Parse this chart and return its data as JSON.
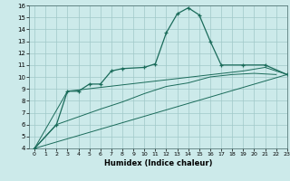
{
  "xlabel": "Humidex (Indice chaleur)",
  "x_values": [
    0,
    1,
    2,
    3,
    4,
    5,
    6,
    7,
    8,
    9,
    10,
    11,
    12,
    13,
    14,
    15,
    16,
    17,
    18,
    19,
    20,
    21,
    22,
    23
  ],
  "line1_x": [
    0,
    2,
    3,
    4,
    5,
    6,
    7,
    8,
    10,
    11,
    12,
    13,
    14,
    15,
    16,
    17,
    19,
    21,
    23
  ],
  "line1_y": [
    4.0,
    6.0,
    8.8,
    8.8,
    9.4,
    9.4,
    10.5,
    10.7,
    10.8,
    11.1,
    13.7,
    15.3,
    15.8,
    15.2,
    13.0,
    11.0,
    11.0,
    11.0,
    10.2
  ],
  "line2_x": [
    0,
    3,
    19,
    21,
    23
  ],
  "line2_y": [
    4.0,
    8.8,
    10.5,
    10.8,
    10.2
  ],
  "line3_x": [
    0,
    2,
    6,
    8,
    10,
    12,
    14,
    16,
    18,
    20,
    22
  ],
  "line3_y": [
    4.0,
    6.0,
    7.3,
    7.9,
    8.6,
    9.2,
    9.5,
    10.0,
    10.2,
    10.3,
    10.2
  ],
  "line4_x": [
    0,
    23
  ],
  "line4_y": [
    4.0,
    10.2
  ],
  "bg_color": "#cceaea",
  "grid_color": "#a0c8c8",
  "line_color": "#1a6b5a",
  "ylim": [
    4,
    16
  ],
  "xlim": [
    -0.5,
    23
  ]
}
